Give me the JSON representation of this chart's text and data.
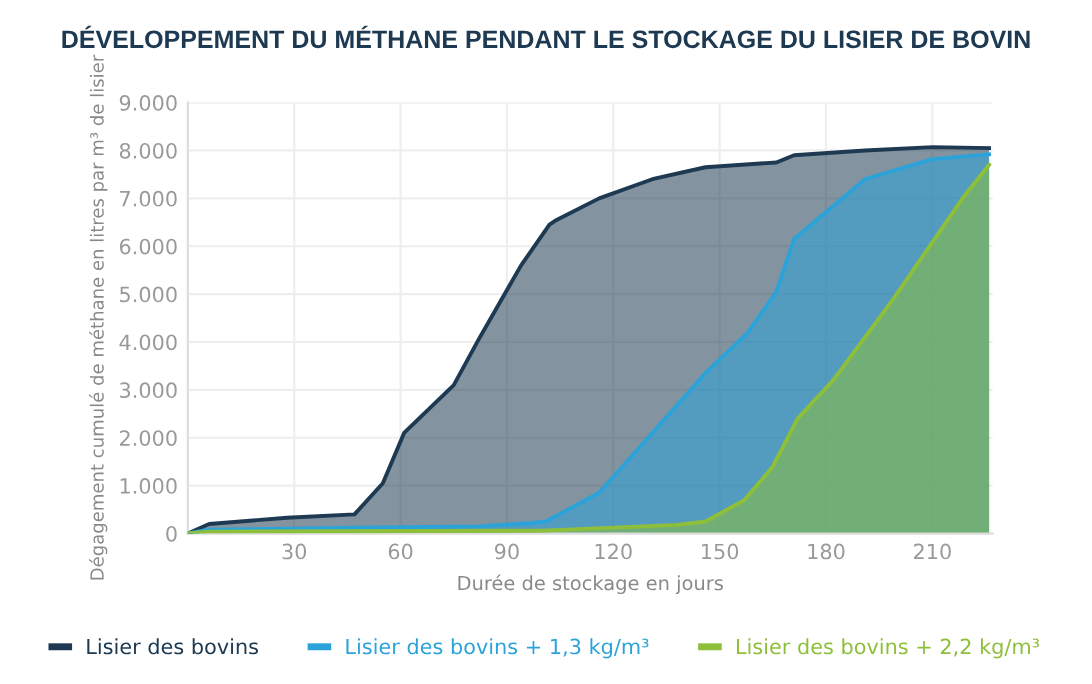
{
  "chart_data": {
    "type": "area",
    "title": "DÉVELOPPEMENT DU MÉTHANE PENDANT LE STOCKAGE DU LISIER DE BOVIN",
    "xlabel": "Durée de stockage en jours",
    "ylabel": "Dégagement cumulé de méthane en litres par m³ de lisier",
    "xlim": [
      0,
      227
    ],
    "xticks": [
      30,
      60,
      90,
      120,
      150,
      180,
      210
    ],
    "ylim": [
      0,
      9000
    ],
    "yticks": [
      {
        "value": 0,
        "label": "0"
      },
      {
        "value": 1000,
        "label": "1.000"
      },
      {
        "value": 2000,
        "label": "2.000"
      },
      {
        "value": 3000,
        "label": "3.000"
      },
      {
        "value": 4000,
        "label": "4.000"
      },
      {
        "value": 5000,
        "label": "5.000"
      },
      {
        "value": 6000,
        "label": "6.000"
      },
      {
        "value": 7000,
        "label": "7.000"
      },
      {
        "value": 8000,
        "label": "8.000"
      },
      {
        "value": 9000,
        "label": "9.000"
      }
    ],
    "grid": true,
    "legend": "bottom",
    "series": [
      {
        "name": "Lisier des bovins",
        "color": "#1e3a52",
        "x": [
          0,
          6,
          28,
          47,
          55,
          61,
          75,
          82,
          94,
          102,
          104,
          116,
          131,
          146,
          166,
          171,
          191,
          210,
          226
        ],
        "values": [
          0,
          200,
          330,
          400,
          1050,
          2100,
          3100,
          4050,
          5600,
          6450,
          6550,
          7000,
          7400,
          7650,
          7750,
          7900,
          8000,
          8070,
          8050
        ]
      },
      {
        "name": "Lisier des bovins + 1,3 kg/m³",
        "color": "#2ba3d9",
        "x": [
          0,
          6,
          47,
          82,
          97,
          101,
          116,
          131,
          146,
          158,
          166,
          171,
          191,
          210,
          226
        ],
        "values": [
          0,
          80,
          120,
          150,
          220,
          250,
          850,
          2100,
          3350,
          4200,
          5050,
          6150,
          7400,
          7820,
          7920
        ]
      },
      {
        "name": "Lisier des bovins + 2,2 kg/m³",
        "color": "#8dbf3a",
        "x": [
          0,
          6,
          100,
          138,
          146,
          157,
          165,
          172,
          182,
          199,
          219,
          226
        ],
        "values": [
          0,
          40,
          60,
          180,
          250,
          700,
          1400,
          2400,
          3200,
          4900,
          7050,
          7700
        ]
      }
    ]
  }
}
